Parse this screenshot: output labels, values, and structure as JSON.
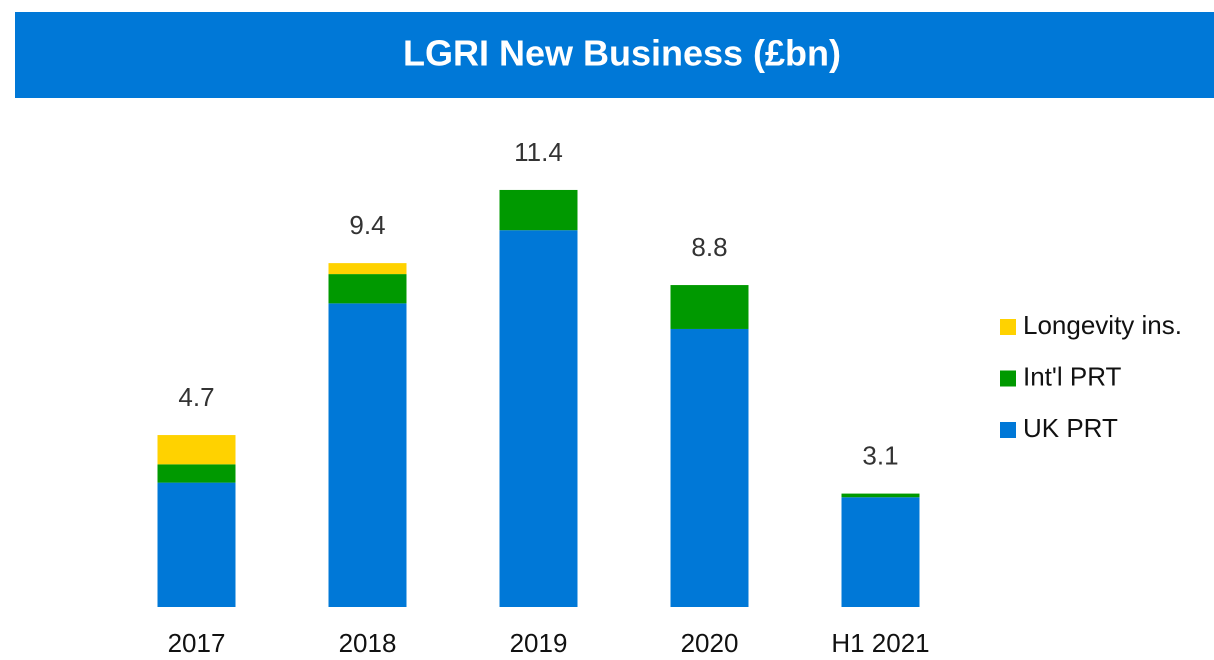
{
  "chart_data": {
    "type": "stacked-bar",
    "title": "LGRI New Business (£bn)",
    "categories": [
      "2017",
      "2018",
      "2019",
      "2020",
      "H1 2021"
    ],
    "series": [
      {
        "name": "UK PRT",
        "color": "#0078d7",
        "values": [
          3.4,
          8.3,
          10.3,
          7.6,
          3.0
        ]
      },
      {
        "name": "Int'l PRT",
        "color": "#009900",
        "values": [
          0.5,
          0.8,
          1.1,
          1.2,
          0.1
        ]
      },
      {
        "name": "Longevity ins.",
        "color": "#ffd200",
        "values": [
          0.8,
          0.3,
          0,
          0,
          0
        ]
      }
    ],
    "totals": [
      4.7,
      9.4,
      11.4,
      8.8,
      3.1
    ],
    "ylim": [
      0,
      12
    ],
    "legend": "right"
  }
}
